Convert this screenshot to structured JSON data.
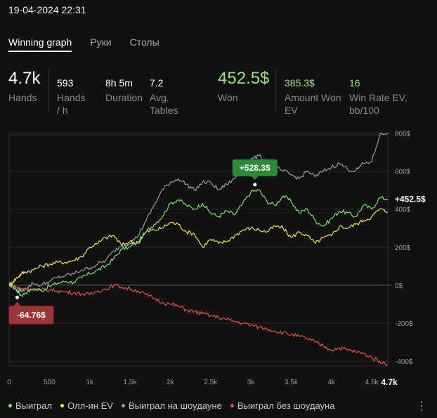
{
  "header": {
    "datetime": "19-04-2024 22:31"
  },
  "tabs": [
    {
      "label": "Winning graph",
      "active": true
    },
    {
      "label": "Руки",
      "active": false
    },
    {
      "label": "Столы",
      "active": false
    }
  ],
  "stats": {
    "hands": {
      "value": "4.7k",
      "label": "Hands"
    },
    "hands_per_hour": {
      "value": "593",
      "label": "Hands / h"
    },
    "duration": {
      "value": "8h 5m",
      "label": "Duration"
    },
    "avg_tables": {
      "value": "7.2",
      "label": "Avg. Tables"
    },
    "won": {
      "value": "452.5$",
      "label": "Won"
    },
    "amount_won_ev": {
      "value": "385.3$",
      "label": "Amount Won EV"
    },
    "win_rate_ev": {
      "value": "16",
      "label": "Win Rate EV, bb/100"
    }
  },
  "colors": {
    "won": "#7be06e",
    "allin_ev": "#f2e15f",
    "showdown": "#9b9b9b",
    "non_showdown": "#e5514d",
    "max_badge": "#2e8a3a",
    "min_badge": "#9e3535"
  },
  "chart_data": {
    "type": "line",
    "x_ticks": [
      {
        "value": 0,
        "label": "0"
      },
      {
        "value": 500,
        "label": "500"
      },
      {
        "value": 1000,
        "label": "1k"
      },
      {
        "value": 1500,
        "label": "1.5k"
      },
      {
        "value": 2000,
        "label": "2k"
      },
      {
        "value": 2500,
        "label": "2.5k"
      },
      {
        "value": 3000,
        "label": "3k"
      },
      {
        "value": 3500,
        "label": "3.5k"
      },
      {
        "value": 4000,
        "label": "4k"
      },
      {
        "value": 4500,
        "label": "4.5k"
      }
    ],
    "x_end_label": "4.7k",
    "xlim": [
      0,
      4700
    ],
    "y_ticks": [
      {
        "value": 800,
        "label": "800$"
      },
      {
        "value": 600,
        "label": "600$"
      },
      {
        "value": 400,
        "label": "400$"
      },
      {
        "value": 200,
        "label": "200$"
      },
      {
        "value": 0,
        "label": "0$"
      },
      {
        "value": -200,
        "label": "-200$"
      },
      {
        "value": -400,
        "label": "-400$"
      }
    ],
    "ylim": [
      -425,
      790
    ],
    "x": [
      0,
      50,
      100,
      150,
      200,
      300,
      400,
      500,
      600,
      700,
      800,
      900,
      1000,
      1100,
      1200,
      1300,
      1400,
      1500,
      1600,
      1700,
      1800,
      1900,
      2000,
      2100,
      2200,
      2300,
      2400,
      2500,
      2600,
      2700,
      2800,
      2900,
      3000,
      3100,
      3200,
      3300,
      3400,
      3500,
      3600,
      3700,
      3800,
      3900,
      4000,
      4100,
      4200,
      4300,
      4400,
      4500,
      4600,
      4700
    ],
    "series": [
      {
        "name": "Выиграл",
        "color_key": "won",
        "values": [
          5,
          -10,
          -30,
          -55,
          -40,
          -20,
          -30,
          -5,
          10,
          20,
          15,
          40,
          60,
          80,
          100,
          140,
          190,
          200,
          230,
          280,
          320,
          360,
          430,
          450,
          420,
          400,
          430,
          380,
          360,
          390,
          370,
          430,
          490,
          500,
          440,
          420,
          470,
          440,
          380,
          400,
          340,
          310,
          350,
          390,
          380,
          360,
          420,
          400,
          460,
          452
        ]
      },
      {
        "name": "Олл-ин EV",
        "color_key": "allin_ev",
        "values": [
          0,
          20,
          40,
          60,
          70,
          80,
          100,
          110,
          120,
          120,
          130,
          150,
          200,
          220,
          250,
          260,
          210,
          230,
          220,
          280,
          290,
          300,
          330,
          320,
          280,
          270,
          200,
          240,
          220,
          230,
          260,
          290,
          300,
          290,
          280,
          310,
          300,
          250,
          280,
          260,
          220,
          250,
          260,
          310,
          300,
          320,
          340,
          360,
          400,
          385
        ]
      },
      {
        "name": "Выиграл на шоудауне",
        "color_key": "showdown",
        "values": [
          5,
          -5,
          -20,
          -30,
          -20,
          10,
          0,
          20,
          40,
          50,
          60,
          80,
          90,
          110,
          130,
          180,
          210,
          220,
          260,
          340,
          420,
          500,
          540,
          560,
          530,
          500,
          540,
          540,
          500,
          530,
          560,
          620,
          660,
          680,
          650,
          620,
          600,
          580,
          560,
          600,
          570,
          600,
          620,
          640,
          610,
          600,
          640,
          650,
          790,
          800
        ]
      },
      {
        "name": "Выиграл без шоудауна",
        "color_key": "non_showdown",
        "values": [
          0,
          -5,
          -10,
          -20,
          -15,
          -20,
          -25,
          -25,
          -30,
          -35,
          -40,
          -45,
          -50,
          -30,
          -20,
          0,
          -10,
          -20,
          -30,
          -50,
          -70,
          -90,
          -100,
          -110,
          -130,
          -140,
          -150,
          -160,
          -170,
          -180,
          -190,
          -200,
          -210,
          -220,
          -230,
          -240,
          -250,
          -260,
          -270,
          -280,
          -300,
          -320,
          -340,
          -330,
          -340,
          -350,
          -360,
          -380,
          -400,
          -420
        ]
      }
    ],
    "annotations": {
      "max": {
        "label": "+528.3$",
        "x": 3050,
        "y": 528.3
      },
      "min": {
        "label": "-64.76$",
        "x": 100,
        "y": -64.76
      },
      "current": {
        "label": "+452.5$",
        "y": 452.5
      }
    },
    "grid": true,
    "legend": "bottom"
  },
  "legend": [
    {
      "label": "Выиграл",
      "color_key": "won"
    },
    {
      "label": "Олл-ин EV",
      "color_key": "allin_ev"
    },
    {
      "label": "Выиграл на шоудауне",
      "color_key": "showdown"
    },
    {
      "label": "Выиграл без шоудауна",
      "color_key": "non_showdown"
    }
  ],
  "menu": {
    "icon": "⋮"
  }
}
